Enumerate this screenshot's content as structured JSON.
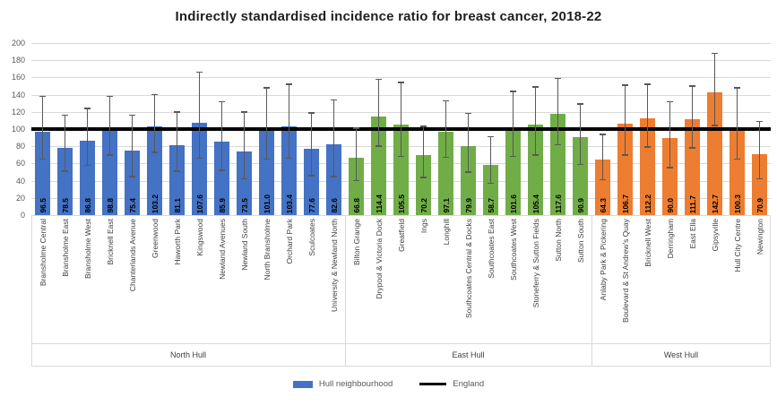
{
  "chart_data": {
    "type": "bar",
    "title": "Indirectly standardised incidence ratio for breast cancer, 2018-22",
    "ylim": [
      0,
      200
    ],
    "ytick_step": 20,
    "grid": "horizontal",
    "error_bars": true,
    "reference_line": {
      "label": "England",
      "value": 100,
      "color": "#000000"
    },
    "legend": {
      "bar_label": "Hull neighbourhood",
      "line_label": "England",
      "position": "bottom"
    },
    "colors": {
      "gridline": "#d9d9d9",
      "axis_text": "#595959",
      "error_bar": "#595959",
      "value_label": "#000000"
    },
    "groups": [
      {
        "name": "North Hull",
        "color": "#4472C4",
        "bars": [
          {
            "label": "Bransholme Central",
            "value": 96.5,
            "lo": 65,
            "hi": 138
          },
          {
            "label": "Bransholme East",
            "value": 78.5,
            "lo": 51,
            "hi": 116
          },
          {
            "label": "Bransholme West",
            "value": 86.8,
            "lo": 58,
            "hi": 124
          },
          {
            "label": "Bricknell East",
            "value": 98.8,
            "lo": 70,
            "hi": 138
          },
          {
            "label": "Chanterlands Avenue",
            "value": 75.4,
            "lo": 45,
            "hi": 116
          },
          {
            "label": "Greenwood",
            "value": 103.2,
            "lo": 73,
            "hi": 140
          },
          {
            "label": "Haworth Park",
            "value": 81.1,
            "lo": 51,
            "hi": 120
          },
          {
            "label": "Kingswood",
            "value": 107.6,
            "lo": 66,
            "hi": 166
          },
          {
            "label": "Newland Avenues",
            "value": 85.9,
            "lo": 52,
            "hi": 132
          },
          {
            "label": "Newland South",
            "value": 73.5,
            "lo": 42,
            "hi": 120
          },
          {
            "label": "North Bransholme",
            "value": 101.0,
            "lo": 65,
            "hi": 148
          },
          {
            "label": "Orchard Park",
            "value": 103.4,
            "lo": 66,
            "hi": 152
          },
          {
            "label": "Sculcoates",
            "value": 77.6,
            "lo": 46,
            "hi": 119
          },
          {
            "label": "University & Newland North",
            "value": 82.6,
            "lo": 45,
            "hi": 134
          }
        ]
      },
      {
        "name": "East Hull",
        "color": "#70AD47",
        "bars": [
          {
            "label": "Bilton Grange",
            "value": 66.8,
            "lo": 40,
            "hi": 101
          },
          {
            "label": "Drypool & Victoria Dock",
            "value": 114.4,
            "lo": 80,
            "hi": 158
          },
          {
            "label": "Greatfield",
            "value": 105.5,
            "lo": 68,
            "hi": 154
          },
          {
            "label": "Ings",
            "value": 70.2,
            "lo": 44,
            "hi": 103
          },
          {
            "label": "Longhill",
            "value": 97.1,
            "lo": 67,
            "hi": 133
          },
          {
            "label": "Southcoates Central & Docks",
            "value": 79.9,
            "lo": 50,
            "hi": 118
          },
          {
            "label": "Southcoates East",
            "value": 58.7,
            "lo": 37,
            "hi": 91
          },
          {
            "label": "Southcoates West",
            "value": 101.6,
            "lo": 68,
            "hi": 144
          },
          {
            "label": "Stoneferry & Sutton Fields",
            "value": 105.4,
            "lo": 70,
            "hi": 149
          },
          {
            "label": "Sutton North",
            "value": 117.6,
            "lo": 82,
            "hi": 159
          },
          {
            "label": "Sutton South",
            "value": 90.9,
            "lo": 59,
            "hi": 129
          }
        ]
      },
      {
        "name": "West Hull",
        "color": "#ED7D31",
        "bars": [
          {
            "label": "Anlaby Park & Pickering",
            "value": 64.3,
            "lo": 41,
            "hi": 94
          },
          {
            "label": "Boulevard & St Andrew's Quay",
            "value": 106.7,
            "lo": 70,
            "hi": 151
          },
          {
            "label": "Bricknell West",
            "value": 112.2,
            "lo": 79,
            "hi": 152
          },
          {
            "label": "Derringham",
            "value": 90.0,
            "lo": 55,
            "hi": 132
          },
          {
            "label": "East Ella",
            "value": 111.7,
            "lo": 78,
            "hi": 150
          },
          {
            "label": "Gipsyville",
            "value": 142.7,
            "lo": 104,
            "hi": 188
          },
          {
            "label": "Hull City Centre",
            "value": 100.3,
            "lo": 65,
            "hi": 148
          },
          {
            "label": "Newington",
            "value": 70.9,
            "lo": 42,
            "hi": 109
          }
        ]
      }
    ]
  }
}
